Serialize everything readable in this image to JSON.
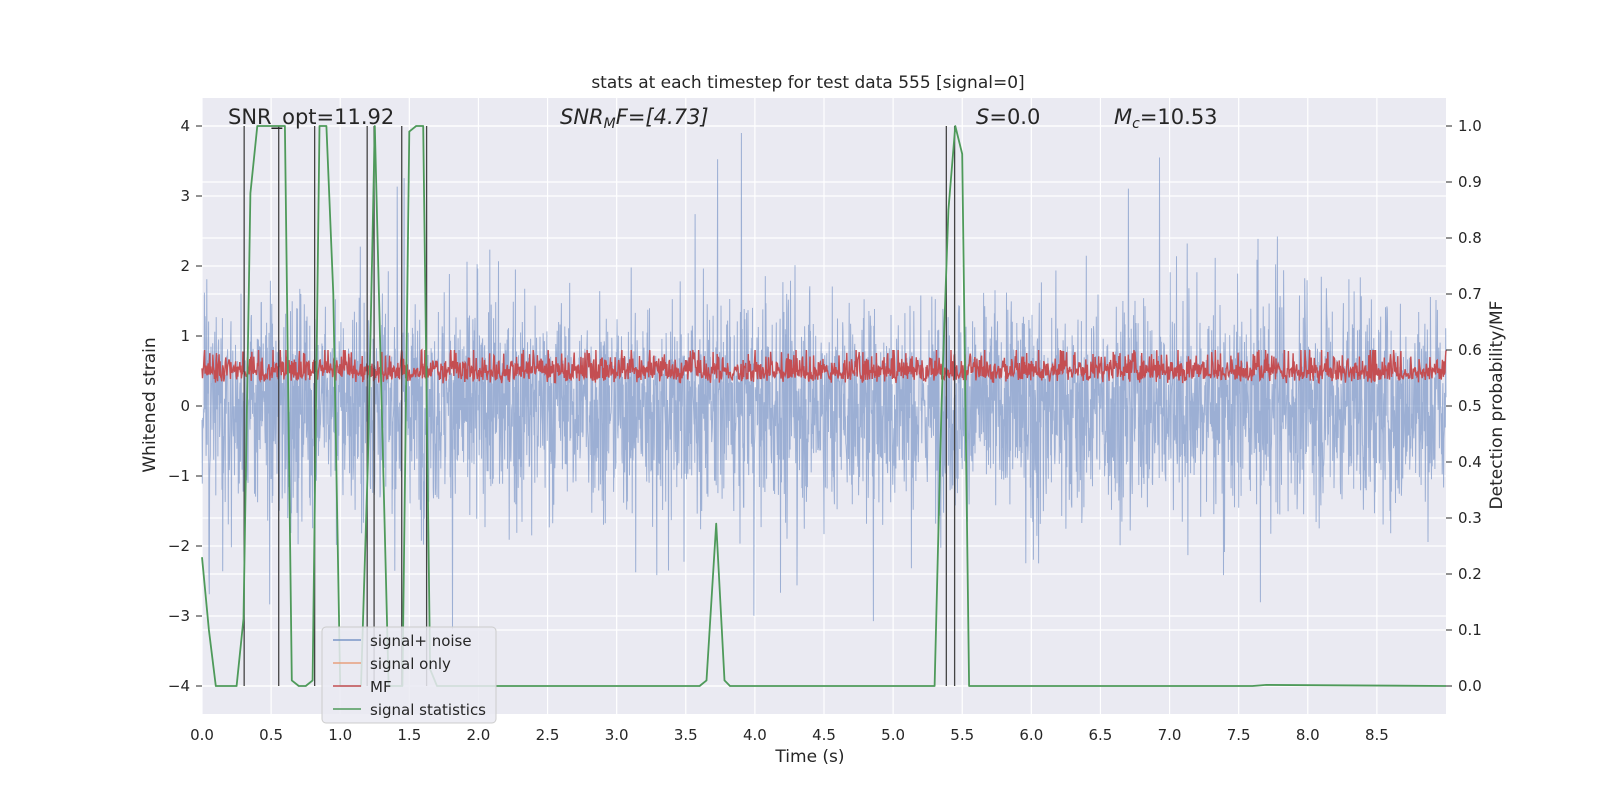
{
  "chart_data": {
    "type": "line",
    "title": "stats at each timestep for test data 555 [signal=0]",
    "xlabel": "Time (s)",
    "ylabel_left": "Whitened strain",
    "ylabel_right": "Detection probability/MF",
    "xlim": [
      0,
      9
    ],
    "ylim_left": [
      -4.4,
      4.4
    ],
    "ylim_right": [
      -0.05,
      1.05
    ],
    "x_ticks": [
      "0.0",
      "0.5",
      "1.0",
      "1.5",
      "2.0",
      "2.5",
      "3.0",
      "3.5",
      "4.0",
      "4.5",
      "5.0",
      "5.5",
      "6.0",
      "6.5",
      "7.0",
      "7.5",
      "8.0",
      "8.5"
    ],
    "y_ticks_left": [
      "−4",
      "−3",
      "−2",
      "−1",
      "0",
      "1",
      "2",
      "3",
      "4"
    ],
    "y_ticks_right": [
      "0.0",
      "0.1",
      "0.2",
      "0.3",
      "0.4",
      "0.5",
      "0.6",
      "0.7",
      "0.8",
      "0.9",
      "1.0"
    ],
    "annotations": {
      "snr_opt": "SNR_opt=11.92",
      "snr_mf_pre": "SNR",
      "snr_mf_sub": "M",
      "snr_mf_post": "F=[4.73]",
      "s_pre": "S",
      "s_post": "=0.0",
      "mc_pre": "M",
      "mc_sub": "c",
      "mc_post": "=10.53"
    },
    "legend": {
      "placement": "lower-left",
      "entries": [
        "signal+ noise",
        "signal only",
        "MF",
        "signal statistics"
      ]
    },
    "colors": {
      "noise": "#7b96c8",
      "signal_only": "#e8a07e",
      "mf": "#c44e52",
      "stat": "#4e9a5a",
      "vlines": "#444444",
      "background": "#eaeaf2",
      "grid": "#ffffff"
    },
    "series": [
      {
        "name": "signal statistics",
        "axis": "right",
        "x": [
          0.0,
          0.05,
          0.1,
          0.2,
          0.25,
          0.3,
          0.35,
          0.4,
          0.45,
          0.5,
          0.55,
          0.6,
          0.65,
          0.7,
          0.75,
          0.8,
          0.85,
          0.9,
          0.95,
          1.0,
          1.05,
          1.1,
          1.15,
          1.2,
          1.25,
          1.3,
          1.35,
          1.4,
          1.45,
          1.5,
          1.55,
          1.6,
          1.65,
          1.7,
          1.75,
          3.6,
          3.65,
          3.72,
          3.78,
          3.82,
          5.3,
          5.35,
          5.4,
          5.45,
          5.5,
          5.55,
          6.0,
          7.6,
          7.7,
          9.0
        ],
        "y": [
          0.23,
          0.1,
          0.0,
          0.0,
          0.0,
          0.12,
          0.88,
          1.0,
          1.0,
          1.0,
          1.0,
          1.0,
          0.01,
          0.0,
          0.0,
          0.01,
          1.0,
          1.0,
          0.7,
          0.0,
          0.0,
          0.0,
          0.0,
          0.4,
          1.0,
          0.5,
          0.0,
          0.0,
          0.0,
          0.99,
          1.0,
          1.0,
          0.03,
          0.0,
          0.0,
          0.0,
          0.01,
          0.29,
          0.01,
          0.0,
          0.0,
          0.5,
          0.85,
          1.0,
          0.95,
          0.0,
          0.0,
          0.0,
          0.002,
          0.0
        ]
      }
    ],
    "vertical_lines_x": [
      0.305,
      0.555,
      0.815,
      1.195,
      1.245,
      1.445,
      1.625,
      5.385,
      5.445
    ]
  }
}
